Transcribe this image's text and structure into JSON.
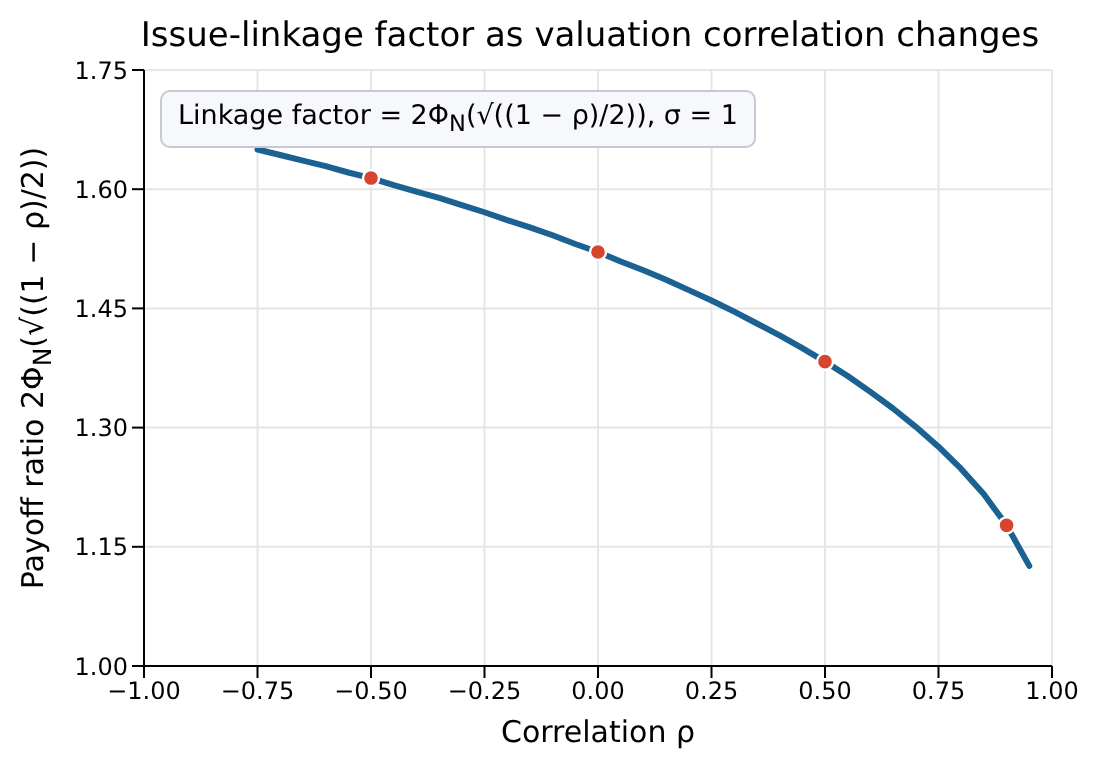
{
  "chart_data": {
    "type": "line",
    "title": "Issue-linkage factor as valuation correlation changes",
    "xlabel": "Correlation ρ",
    "ylabel": "Payoff ratio 2Φ$_{N}$(√((1 − ρ)/2))",
    "annotations": [
      "Linkage factor = 2Φ$_{N}$(√((1 − ρ)/2)), σ = 1"
    ],
    "series": [
      {
        "type": "line",
        "color": "#1b6292",
        "marker": "none",
        "x": [
          -0.75,
          -0.7,
          -0.65,
          -0.6,
          -0.55,
          -0.5,
          -0.45,
          -0.4,
          -0.35,
          -0.3,
          -0.25,
          -0.2,
          -0.15,
          -0.1,
          -0.05,
          0,
          0.05,
          0.1,
          0.15,
          0.2,
          0.25,
          0.3,
          0.35,
          0.4,
          0.45,
          0.5,
          0.55,
          0.6,
          0.65,
          0.7,
          0.75,
          0.8,
          0.85,
          0.9,
          0.95
        ],
        "values": [
          1.65,
          1.643,
          1.636,
          1.629,
          1.621,
          1.614,
          1.605,
          1.597,
          1.589,
          1.58,
          1.571,
          1.561,
          1.552,
          1.542,
          1.531,
          1.521,
          1.509,
          1.498,
          1.486,
          1.473,
          1.46,
          1.446,
          1.431,
          1.416,
          1.4,
          1.383,
          1.365,
          1.345,
          1.324,
          1.301,
          1.276,
          1.248,
          1.216,
          1.177,
          1.126
        ]
      },
      {
        "type": "scatter",
        "color": "#d6452e",
        "marker": "circle",
        "x": [
          -0.5,
          0,
          0.5,
          0.9
        ],
        "values": [
          1.614,
          1.521,
          1.383,
          1.177
        ]
      }
    ],
    "xlim": [
      -1,
      1
    ],
    "xticks": [
      {
        "value": -1,
        "label": "−1.00"
      },
      {
        "value": -0.75,
        "label": "−0.75"
      },
      {
        "value": -0.5,
        "label": "−0.50"
      },
      {
        "value": -0.25,
        "label": "−0.25"
      },
      {
        "value": 0,
        "label": "0.00"
      },
      {
        "value": 0.25,
        "label": "0.25"
      },
      {
        "value": 0.5,
        "label": "0.50"
      },
      {
        "value": 0.75,
        "label": "0.75"
      },
      {
        "value": 1,
        "label": "1.00"
      }
    ],
    "ylim": [
      1,
      1.75
    ],
    "yticks": [
      {
        "value": 1,
        "label": "1.00"
      },
      {
        "value": 1.15,
        "label": "1.15"
      },
      {
        "value": 1.3,
        "label": "1.30"
      },
      {
        "value": 1.45,
        "label": "1.45"
      },
      {
        "value": 1.6,
        "label": "1.60"
      },
      {
        "value": 1.75,
        "label": "1.75"
      }
    ],
    "grid": true
  }
}
